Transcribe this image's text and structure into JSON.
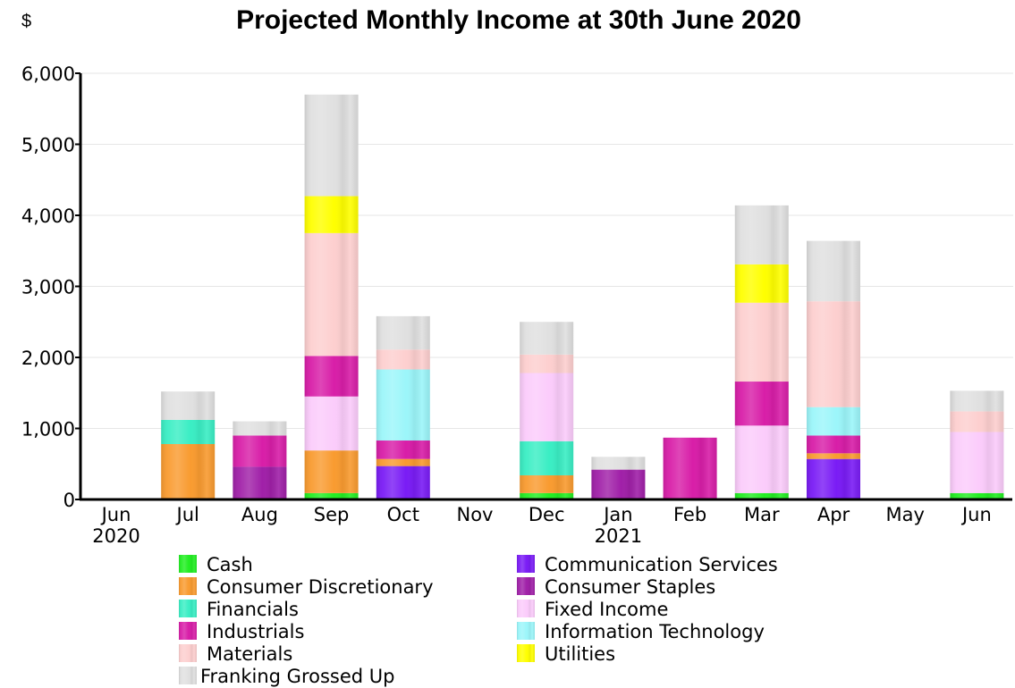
{
  "chart_data": {
    "type": "bar",
    "stacked": true,
    "title": "Projected Monthly Income at 30th June 2020",
    "unit_label": "$",
    "ylim": [
      0,
      6000
    ],
    "yticks": [
      "0",
      "1,000",
      "2,000",
      "3,000",
      "4,000",
      "5,000",
      "6,000"
    ],
    "grid": true,
    "legend_position": "bottom",
    "categories": [
      "Jun",
      "Jul",
      "Aug",
      "Sep",
      "Oct",
      "Nov",
      "Dec",
      "Jan",
      "Feb",
      "Mar",
      "Apr",
      "May",
      "Jun"
    ],
    "category_sublabels": [
      "2020",
      "",
      "",
      "",
      "",
      "",
      "",
      "2021",
      "",
      "",
      "",
      "",
      ""
    ],
    "series": [
      {
        "name": "Cash",
        "color": "#22ee22",
        "values": [
          0,
          0,
          0,
          90,
          0,
          0,
          90,
          0,
          0,
          90,
          0,
          0,
          90
        ]
      },
      {
        "name": "Communication Services",
        "color": "#7a1cf5",
        "values": [
          0,
          0,
          0,
          0,
          470,
          0,
          0,
          0,
          0,
          0,
          570,
          0,
          0
        ]
      },
      {
        "name": "Consumer Discretionary",
        "color": "#f99b30",
        "values": [
          0,
          780,
          0,
          600,
          100,
          0,
          250,
          0,
          0,
          0,
          80,
          0,
          0
        ]
      },
      {
        "name": "Consumer Staples",
        "color": "#a020a8",
        "values": [
          0,
          0,
          460,
          0,
          0,
          0,
          0,
          420,
          0,
          0,
          0,
          0,
          0
        ]
      },
      {
        "name": "Financials",
        "color": "#3aeec4",
        "values": [
          0,
          340,
          0,
          0,
          0,
          0,
          480,
          0,
          0,
          0,
          0,
          0,
          0
        ]
      },
      {
        "name": "Fixed Income",
        "color": "#fbccfb",
        "values": [
          0,
          0,
          0,
          760,
          0,
          0,
          960,
          0,
          0,
          950,
          0,
          0,
          860
        ]
      },
      {
        "name": "Industrials",
        "color": "#d81ea8",
        "values": [
          0,
          0,
          440,
          570,
          260,
          0,
          0,
          0,
          870,
          620,
          250,
          0,
          0
        ]
      },
      {
        "name": "Information Technology",
        "color": "#9cf6fa",
        "values": [
          0,
          0,
          0,
          0,
          1000,
          0,
          0,
          0,
          0,
          0,
          400,
          0,
          0
        ]
      },
      {
        "name": "Materials",
        "color": "#fdcfcf",
        "values": [
          0,
          0,
          0,
          1730,
          280,
          0,
          260,
          0,
          0,
          1110,
          1490,
          0,
          290
        ]
      },
      {
        "name": "Utilities",
        "color": "#ffff00",
        "values": [
          0,
          0,
          0,
          520,
          0,
          0,
          0,
          0,
          0,
          540,
          0,
          0,
          0
        ]
      },
      {
        "name": "Franking Grossed Up",
        "color": "#e0e0e0",
        "values": [
          0,
          400,
          200,
          1430,
          470,
          0,
          460,
          180,
          0,
          830,
          850,
          0,
          290
        ]
      }
    ]
  }
}
